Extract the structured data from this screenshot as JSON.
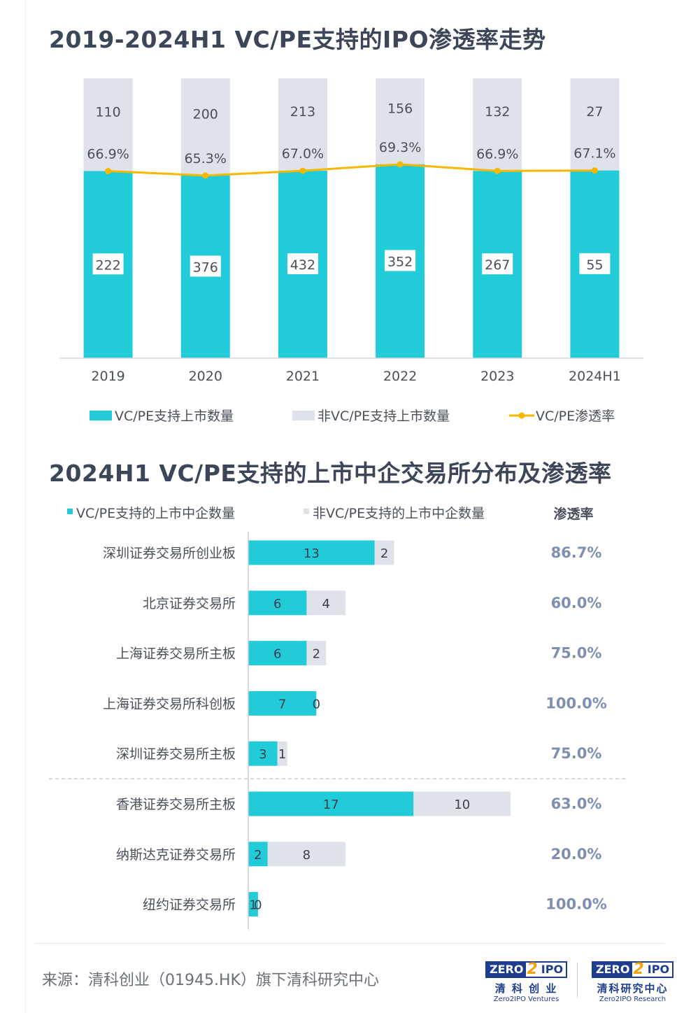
{
  "titles": {
    "chart1": "2019-2024H1 VC/PE支持的IPO渗透率走势",
    "chart2": "2024H1 VC/PE支持的上市中企交易所分布及渗透率"
  },
  "colors": {
    "vcpe": "#22cbd8",
    "non_vcpe": "#dfe2e8",
    "rate_line": "#f5b800",
    "rate_text2": "#7e8fb1",
    "title": "#3d4658",
    "text": "#4a4f5a"
  },
  "chart_data": [
    {
      "type": "bar",
      "stacked": true,
      "categories": [
        "2019",
        "2020",
        "2021",
        "2022",
        "2023",
        "2024H1"
      ],
      "series": [
        {
          "name": "VC/PE支持上市数量",
          "values": [
            222,
            376,
            432,
            352,
            267,
            55
          ]
        },
        {
          "name": "非VC/PE支持上市数量",
          "values": [
            110,
            200,
            213,
            156,
            132,
            27
          ]
        }
      ],
      "line_series": {
        "name": "VC/PE渗透率",
        "values": [
          66.9,
          65.3,
          67.0,
          69.3,
          66.9,
          67.1
        ],
        "labels": [
          "66.9%",
          "65.3%",
          "67.0%",
          "69.3%",
          "66.9%",
          "67.1%"
        ]
      },
      "normalized": true,
      "legend_position": "bottom",
      "grid": false
    },
    {
      "type": "bar",
      "orientation": "horizontal",
      "stacked": true,
      "categories": [
        "深圳证券交易所创业板",
        "北京证券交易所",
        "上海证券交易所主板",
        "上海证券交易所科创板",
        "深圳证券交易所主板",
        "香港证券交易所主板",
        "纳斯达克证券交易所",
        "纽约证券交易所"
      ],
      "series": [
        {
          "name": "VC/PE支持的上市中企数量",
          "values": [
            13,
            6,
            6,
            7,
            3,
            17,
            2,
            1
          ]
        },
        {
          "name": "非VC/PE支持的上市中企数量",
          "values": [
            2,
            4,
            2,
            0,
            1,
            10,
            8,
            0
          ]
        }
      ],
      "rate_header": "渗透率",
      "rates": [
        "86.7%",
        "60.0%",
        "75.0%",
        "100.0%",
        "75.0%",
        "63.0%",
        "20.0%",
        "100.0%"
      ],
      "legend_position": "top",
      "grid": false
    }
  ],
  "footer": {
    "source": "来源：清科创业（01945.HK）旗下清科研究中心",
    "logos": [
      {
        "mark_left": "ZERO",
        "mark_mid": "2",
        "mark_right": "IPO",
        "cn": "清 科 创 业",
        "en": "Zero2IPO Ventures"
      },
      {
        "mark_left": "ZERO",
        "mark_mid": "2",
        "mark_right": "IPO",
        "cn": "清科研究中心",
        "en": "Zero2IPO Research"
      }
    ]
  }
}
